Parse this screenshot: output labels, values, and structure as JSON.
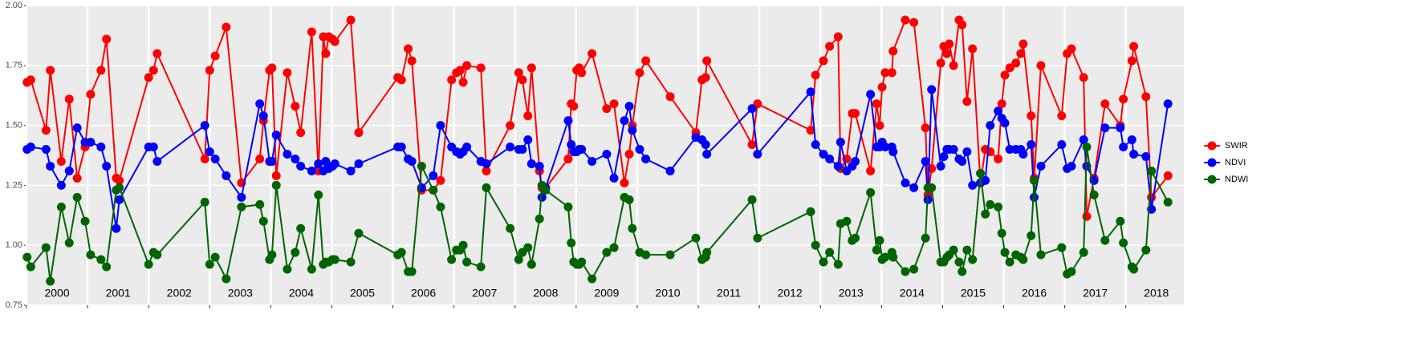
{
  "chart_data": {
    "type": "line",
    "x": [
      2000.01,
      2000.07,
      2000.32,
      2000.39,
      2000.57,
      2000.7,
      2000.83,
      2000.96,
      2001.05,
      2001.22,
      2001.31,
      2001.47,
      2001.52,
      2002.0,
      2002.08,
      2002.14,
      2002.92,
      2003.0,
      2003.09,
      2003.27,
      2003.52,
      2003.82,
      2003.88,
      2003.98,
      2004.02,
      2004.09,
      2004.27,
      2004.4,
      2004.49,
      2004.67,
      2004.78,
      2004.86,
      2004.9,
      2004.95,
      2005.01,
      2005.05,
      2005.31,
      2005.44,
      2006.08,
      2006.14,
      2006.25,
      2006.31,
      2006.47,
      2006.66,
      2006.78,
      2006.96,
      2007.04,
      2007.1,
      2007.15,
      2007.21,
      2007.44,
      2007.53,
      2007.92,
      2008.06,
      2008.12,
      2008.21,
      2008.27,
      2008.4,
      2008.44,
      2008.5,
      2008.87,
      2008.92,
      2008.96,
      2009.01,
      2009.05,
      2009.09,
      2009.26,
      2009.5,
      2009.62,
      2009.79,
      2009.87,
      2009.92,
      2010.04,
      2010.14,
      2010.54,
      2010.96,
      2011.06,
      2011.12,
      2011.14,
      2011.88,
      2011.97,
      2012.84,
      2012.92,
      2013.05,
      2013.15,
      2013.29,
      2013.33,
      2013.43,
      2013.52,
      2013.57,
      2013.82,
      2013.92,
      2013.97,
      2014.01,
      2014.06,
      2014.17,
      2014.19,
      2014.39,
      2014.53,
      2014.72,
      2014.76,
      2014.82,
      2014.97,
      2015.02,
      2015.07,
      2015.11,
      2015.18,
      2015.27,
      2015.32,
      2015.4,
      2015.49,
      2015.62,
      2015.7,
      2015.78,
      2015.91,
      2015.97,
      2016.02,
      2016.1,
      2016.2,
      2016.28,
      2016.32,
      2016.45,
      2016.5,
      2016.61,
      2016.95,
      2017.04,
      2017.11,
      2017.31,
      2017.36,
      2017.48,
      2017.66,
      2017.91,
      2017.96,
      2018.1,
      2018.13,
      2018.33,
      2018.42,
      2018.69
    ],
    "series": [
      {
        "name": "SWIR",
        "color": "#ff0000",
        "values": [
          1.68,
          1.69,
          1.48,
          1.73,
          1.35,
          1.61,
          1.28,
          1.41,
          1.63,
          1.73,
          1.86,
          1.28,
          1.27,
          1.7,
          1.73,
          1.8,
          1.36,
          1.73,
          1.79,
          1.91,
          1.26,
          1.36,
          1.52,
          1.73,
          1.74,
          1.29,
          1.72,
          1.58,
          1.47,
          1.89,
          1.31,
          1.87,
          1.8,
          1.87,
          1.86,
          1.85,
          1.94,
          1.47,
          1.7,
          1.69,
          1.82,
          1.77,
          1.23,
          1.23,
          1.27,
          1.69,
          1.72,
          1.73,
          1.68,
          1.75,
          1.74,
          1.31,
          1.5,
          1.72,
          1.69,
          1.54,
          1.74,
          1.31,
          1.24,
          1.24,
          1.36,
          1.59,
          1.58,
          1.73,
          1.74,
          1.72,
          1.8,
          1.57,
          1.59,
          1.26,
          1.38,
          1.5,
          1.72,
          1.77,
          1.62,
          1.47,
          1.69,
          1.7,
          1.77,
          1.42,
          1.59,
          1.48,
          1.71,
          1.77,
          1.83,
          1.87,
          1.32,
          1.36,
          1.55,
          1.55,
          1.31,
          1.59,
          1.5,
          1.66,
          1.72,
          1.72,
          1.81,
          1.94,
          1.93,
          1.49,
          1.21,
          1.32,
          1.76,
          1.83,
          1.8,
          1.84,
          1.75,
          1.94,
          1.92,
          1.6,
          1.82,
          1.26,
          1.4,
          1.39,
          1.36,
          1.59,
          1.71,
          1.74,
          1.76,
          1.8,
          1.84,
          1.54,
          1.28,
          1.75,
          1.54,
          1.8,
          1.82,
          1.7,
          1.12,
          1.28,
          1.59,
          1.5,
          1.61,
          1.77,
          1.83,
          1.62,
          1.2,
          1.29
        ]
      },
      {
        "name": "NDVI",
        "color": "#0000ff",
        "values": [
          1.4,
          1.41,
          1.4,
          1.33,
          1.25,
          1.31,
          1.49,
          1.43,
          1.43,
          1.41,
          1.33,
          1.07,
          1.19,
          1.41,
          1.41,
          1.35,
          1.5,
          1.39,
          1.36,
          1.29,
          1.2,
          1.59,
          1.54,
          1.35,
          1.35,
          1.46,
          1.38,
          1.36,
          1.33,
          1.31,
          1.34,
          1.31,
          1.35,
          1.32,
          1.33,
          1.34,
          1.31,
          1.34,
          1.41,
          1.41,
          1.36,
          1.35,
          1.24,
          1.29,
          1.5,
          1.41,
          1.39,
          1.38,
          1.39,
          1.41,
          1.35,
          1.34,
          1.41,
          1.4,
          1.4,
          1.44,
          1.34,
          1.33,
          1.2,
          1.24,
          1.52,
          1.42,
          1.39,
          1.39,
          1.4,
          1.4,
          1.35,
          1.38,
          1.28,
          1.52,
          1.58,
          1.48,
          1.4,
          1.36,
          1.31,
          1.45,
          1.44,
          1.42,
          1.38,
          1.57,
          1.38,
          1.64,
          1.42,
          1.38,
          1.36,
          1.33,
          1.43,
          1.31,
          1.33,
          1.35,
          1.63,
          1.41,
          1.41,
          1.43,
          1.41,
          1.41,
          1.39,
          1.26,
          1.24,
          1.35,
          1.19,
          1.65,
          1.33,
          1.37,
          1.4,
          1.4,
          1.4,
          1.36,
          1.35,
          1.39,
          1.25,
          1.26,
          1.27,
          1.5,
          1.56,
          1.53,
          1.51,
          1.4,
          1.4,
          1.4,
          1.38,
          1.42,
          1.2,
          1.33,
          1.42,
          1.32,
          1.33,
          1.44,
          1.33,
          1.27,
          1.49,
          1.49,
          1.41,
          1.44,
          1.38,
          1.37,
          1.15,
          1.59
        ]
      },
      {
        "name": "NDWI",
        "color": "#006400",
        "values": [
          0.95,
          0.91,
          0.99,
          0.85,
          1.16,
          1.01,
          1.2,
          1.1,
          0.96,
          0.94,
          0.91,
          1.23,
          1.24,
          0.92,
          0.97,
          0.96,
          1.18,
          0.92,
          0.95,
          0.86,
          1.16,
          1.17,
          1.1,
          0.94,
          0.96,
          1.25,
          0.9,
          0.97,
          1.07,
          0.9,
          1.21,
          0.92,
          0.93,
          0.93,
          0.94,
          0.94,
          0.93,
          1.05,
          0.96,
          0.97,
          0.89,
          0.89,
          1.33,
          1.23,
          1.16,
          0.94,
          0.98,
          0.98,
          1.0,
          0.93,
          0.91,
          1.24,
          1.07,
          0.94,
          0.97,
          0.99,
          0.92,
          1.11,
          1.25,
          1.23,
          1.16,
          1.01,
          0.93,
          0.92,
          0.92,
          0.93,
          0.86,
          0.97,
          0.99,
          1.2,
          1.19,
          1.07,
          0.97,
          0.96,
          0.96,
          1.03,
          0.94,
          0.95,
          0.97,
          1.19,
          1.03,
          1.14,
          1.0,
          0.93,
          0.97,
          0.92,
          1.09,
          1.1,
          1.02,
          1.03,
          1.22,
          0.98,
          1.02,
          0.94,
          0.95,
          0.97,
          0.95,
          0.89,
          0.9,
          1.03,
          1.24,
          1.24,
          0.93,
          0.93,
          0.95,
          0.96,
          0.98,
          0.93,
          0.89,
          0.98,
          0.94,
          1.3,
          1.13,
          1.17,
          1.16,
          1.05,
          0.97,
          0.93,
          0.96,
          0.95,
          0.94,
          1.04,
          1.27,
          0.96,
          0.99,
          0.88,
          0.89,
          0.97,
          1.41,
          1.21,
          1.02,
          1.1,
          1.01,
          0.91,
          0.9,
          0.98,
          1.31,
          1.18
        ]
      }
    ],
    "xlim": [
      2000,
      2018.95
    ],
    "xticks": [
      2000,
      2001,
      2002,
      2003,
      2004,
      2005,
      2006,
      2007,
      2008,
      2009,
      2010,
      2011,
      2012,
      2013,
      2014,
      2015,
      2016,
      2017,
      2018
    ],
    "ylim": [
      0.75,
      2.0
    ],
    "yticks": [
      0.75,
      {
        "value": 1.0,
        "label": "1.00"
      },
      1.25,
      {
        "value": 1.5,
        "label": "1.50"
      },
      1.75,
      {
        "value": 2.0,
        "label": "2.00"
      }
    ],
    "grid": true,
    "legend": "right"
  }
}
